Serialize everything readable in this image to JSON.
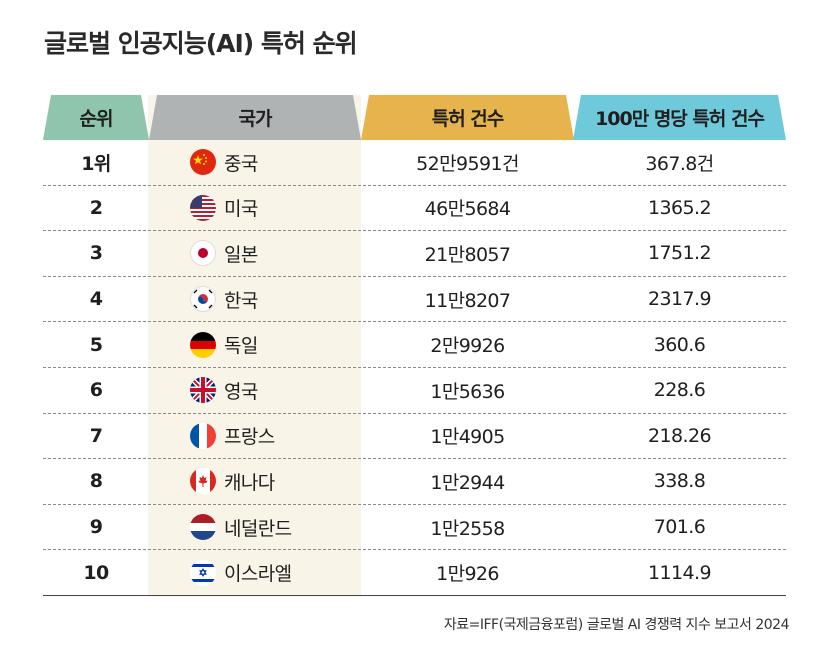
{
  "title": "글로벌 인공지능(AI) 특허 순위",
  "headers": {
    "rank": "순위",
    "country": "국가",
    "patents": "특허 건수",
    "per_million": "100만 명당 특허 건수"
  },
  "chart_data": {
    "type": "table",
    "title": "글로벌 인공지능(AI) 특허 순위",
    "columns": [
      "순위",
      "국가",
      "특허 건수",
      "100만 명당 특허 건수"
    ],
    "rows": [
      {
        "rank": "1위",
        "country": "중국",
        "flag": "flag-china-icon",
        "patents": "52만9591건",
        "per_million": "367.8건"
      },
      {
        "rank": "2",
        "country": "미국",
        "flag": "flag-usa-icon",
        "patents": "46만5684",
        "per_million": "1365.2"
      },
      {
        "rank": "3",
        "country": "일본",
        "flag": "flag-japan-icon",
        "patents": "21만8057",
        "per_million": "1751.2"
      },
      {
        "rank": "4",
        "country": "한국",
        "flag": "flag-korea-icon",
        "patents": "11만8207",
        "per_million": "2317.9"
      },
      {
        "rank": "5",
        "country": "독일",
        "flag": "flag-germany-icon",
        "patents": "2만9926",
        "per_million": "360.6"
      },
      {
        "rank": "6",
        "country": "영국",
        "flag": "flag-uk-icon",
        "patents": "1만5636",
        "per_million": "228.6"
      },
      {
        "rank": "7",
        "country": "프랑스",
        "flag": "flag-france-icon",
        "patents": "1만4905",
        "per_million": "218.26"
      },
      {
        "rank": "8",
        "country": "캐나다",
        "flag": "flag-canada-icon",
        "patents": "1만2944",
        "per_million": "338.8"
      },
      {
        "rank": "9",
        "country": "네덜란드",
        "flag": "flag-netherlands-icon",
        "patents": "1만2558",
        "per_million": "701.6"
      },
      {
        "rank": "10",
        "country": "이스라엘",
        "flag": "flag-israel-icon",
        "patents": "1만926",
        "per_million": "1114.9"
      }
    ]
  },
  "footer": "자료=IFF(국제금융포럼) 글로벌 AI 경쟁력 지수 보고서 2024",
  "colors": {
    "rank_header": "#8fc4ad",
    "country_header": "#b0b3b4",
    "patents_header": "#e7b34d",
    "per_million_header": "#6ecadb",
    "country_column_bg": "#f8f5e8"
  }
}
